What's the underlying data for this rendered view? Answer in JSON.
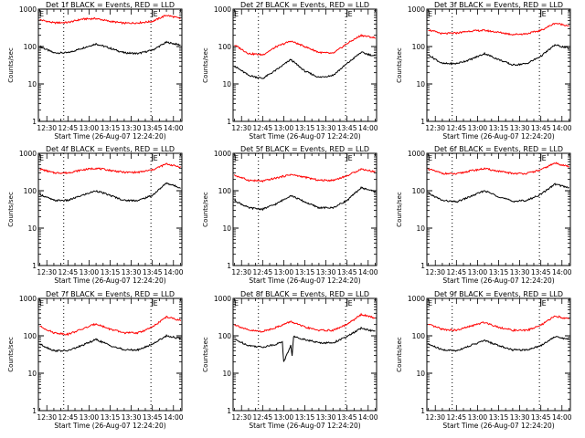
{
  "figure": {
    "layout": "3x3 grid",
    "colors": {
      "events": "#000000",
      "lld": "#ff0000",
      "frame": "#000000",
      "marker": "#000000"
    }
  },
  "chart_data": [
    {
      "type": "line",
      "title": "Det 1f BLACK = Events, RED = LLD",
      "xlabel": "Start Time (26-Aug-07 12:24:20)",
      "ylabel": "Counts/sec",
      "x_ticks": [
        "12:30",
        "12:45",
        "13:00",
        "13:15",
        "13:30",
        "13:45",
        "14:00"
      ],
      "y_ticks": [
        "1",
        "10",
        "100",
        "1000"
      ],
      "yscale": "log",
      "ylim": [
        1,
        1000
      ],
      "xlim": [
        "12:24",
        "14:06"
      ],
      "markers": [
        {
          "label": "E",
          "x": "12:24"
        },
        {
          "label": "E",
          "x": "13:45"
        }
      ],
      "dotted_lines_at": [
        "12:42",
        "13:44"
      ],
      "series": [
        {
          "name": "Events",
          "color": "#000000",
          "x": [
            "12:25",
            "12:35",
            "12:45",
            "12:55",
            "13:05",
            "13:15",
            "13:25",
            "13:35",
            "13:45",
            "13:55",
            "14:05"
          ],
          "y": [
            100,
            68,
            68,
            90,
            118,
            90,
            68,
            65,
            80,
            130,
            110
          ]
        },
        {
          "name": "LLD",
          "color": "#ff0000",
          "x": [
            "12:25",
            "12:35",
            "12:45",
            "12:55",
            "13:05",
            "13:15",
            "13:25",
            "13:35",
            "13:45",
            "13:55",
            "14:05"
          ],
          "y": [
            520,
            430,
            440,
            540,
            560,
            470,
            420,
            430,
            470,
            690,
            560
          ]
        }
      ]
    },
    {
      "type": "line",
      "title": "Det 2f BLACK = Events, RED = LLD",
      "xlabel": "Start Time (26-Aug-07 12:24:20)",
      "ylabel": "Counts/sec",
      "x_ticks": [
        "12:30",
        "12:45",
        "13:00",
        "13:15",
        "13:30",
        "13:45",
        "14:00"
      ],
      "y_ticks": [
        "1",
        "10",
        "100",
        "1000"
      ],
      "yscale": "log",
      "ylim": [
        1,
        1000
      ],
      "xlim": [
        "12:24",
        "14:06"
      ],
      "markers": [
        {
          "label": "E",
          "x": "12:24"
        },
        {
          "label": "E",
          "x": "13:45"
        }
      ],
      "dotted_lines_at": [
        "12:42",
        "13:44"
      ],
      "series": [
        {
          "name": "Events",
          "color": "#000000",
          "x": [
            "12:25",
            "12:35",
            "12:45",
            "12:55",
            "13:05",
            "13:15",
            "13:25",
            "13:35",
            "13:45",
            "13:55",
            "14:05"
          ],
          "y": [
            30,
            17,
            14,
            24,
            45,
            22,
            15,
            17,
            35,
            70,
            55
          ]
        },
        {
          "name": "LLD",
          "color": "#ff0000",
          "x": [
            "12:25",
            "12:35",
            "12:45",
            "12:55",
            "13:05",
            "13:15",
            "13:25",
            "13:35",
            "13:45",
            "13:55",
            "14:05"
          ],
          "y": [
            110,
            65,
            60,
            100,
            140,
            100,
            70,
            65,
            120,
            200,
            170
          ]
        }
      ]
    },
    {
      "type": "line",
      "title": "Det 3f BLACK = Events, RED = LLD",
      "xlabel": "Start Time (26-Aug-07 12:24:20)",
      "ylabel": "Counts/sec",
      "x_ticks": [
        "12:30",
        "12:45",
        "13:00",
        "13:15",
        "13:30",
        "13:45",
        "14:00"
      ],
      "y_ticks": [
        "1",
        "10",
        "100",
        "1000"
      ],
      "yscale": "log",
      "ylim": [
        1,
        1000
      ],
      "xlim": [
        "12:24",
        "14:06"
      ],
      "markers": [
        {
          "label": "E",
          "x": "12:24"
        },
        {
          "label": "E",
          "x": "13:45"
        }
      ],
      "dotted_lines_at": [
        "12:42",
        "13:44"
      ],
      "series": [
        {
          "name": "Events",
          "color": "#000000",
          "x": [
            "12:25",
            "12:35",
            "12:45",
            "12:55",
            "13:05",
            "13:15",
            "13:25",
            "13:35",
            "13:45",
            "13:55",
            "14:05"
          ],
          "y": [
            60,
            35,
            35,
            45,
            65,
            45,
            32,
            35,
            55,
            110,
            90
          ]
        },
        {
          "name": "LLD",
          "color": "#ff0000",
          "x": [
            "12:25",
            "12:35",
            "12:45",
            "12:55",
            "13:05",
            "13:15",
            "13:25",
            "13:35",
            "13:45",
            "13:55",
            "14:05"
          ],
          "y": [
            280,
            220,
            230,
            260,
            270,
            240,
            210,
            220,
            270,
            420,
            360
          ]
        }
      ]
    },
    {
      "type": "line",
      "title": "Det 4f BLACK = Events, RED = LLD",
      "xlabel": "Start Time (26-Aug-07 12:24:20)",
      "ylabel": "Counts/sec",
      "x_ticks": [
        "12:30",
        "12:45",
        "13:00",
        "13:15",
        "13:30",
        "13:45",
        "14:00"
      ],
      "y_ticks": [
        "1",
        "10",
        "100",
        "1000"
      ],
      "yscale": "log",
      "ylim": [
        1,
        1000
      ],
      "xlim": [
        "12:24",
        "14:06"
      ],
      "markers": [
        {
          "label": "E",
          "x": "12:24"
        },
        {
          "label": "E",
          "x": "13:45"
        }
      ],
      "dotted_lines_at": [
        "12:42",
        "13:44"
      ],
      "series": [
        {
          "name": "Events",
          "color": "#000000",
          "x": [
            "12:25",
            "12:35",
            "12:45",
            "12:55",
            "13:05",
            "13:15",
            "13:25",
            "13:35",
            "13:45",
            "13:55",
            "14:05"
          ],
          "y": [
            80,
            55,
            55,
            75,
            100,
            75,
            55,
            55,
            75,
            160,
            120
          ]
        },
        {
          "name": "LLD",
          "color": "#ff0000",
          "x": [
            "12:25",
            "12:35",
            "12:45",
            "12:55",
            "13:05",
            "13:15",
            "13:25",
            "13:35",
            "13:45",
            "13:55",
            "14:05"
          ],
          "y": [
            380,
            300,
            300,
            360,
            400,
            350,
            310,
            310,
            360,
            520,
            430
          ]
        }
      ]
    },
    {
      "type": "line",
      "title": "Det 5f BLACK = Events, RED = LLD",
      "xlabel": "Start Time (26-Aug-07 12:24:20)",
      "ylabel": "Counts/sec",
      "x_ticks": [
        "12:30",
        "12:45",
        "13:00",
        "13:15",
        "13:30",
        "13:45",
        "14:00"
      ],
      "y_ticks": [
        "1",
        "10",
        "100",
        "1000"
      ],
      "yscale": "log",
      "ylim": [
        1,
        1000
      ],
      "xlim": [
        "12:24",
        "14:06"
      ],
      "markers": [
        {
          "label": "E",
          "x": "12:24"
        },
        {
          "label": "E",
          "x": "13:45"
        }
      ],
      "dotted_lines_at": [
        "12:42",
        "13:44"
      ],
      "series": [
        {
          "name": "Events",
          "color": "#000000",
          "x": [
            "12:25",
            "12:35",
            "12:45",
            "12:55",
            "13:05",
            "13:15",
            "13:25",
            "13:35",
            "13:45",
            "13:55",
            "14:05"
          ],
          "y": [
            55,
            35,
            32,
            45,
            75,
            50,
            35,
            35,
            55,
            120,
            95
          ]
        },
        {
          "name": "LLD",
          "color": "#ff0000",
          "x": [
            "12:25",
            "12:35",
            "12:45",
            "12:55",
            "13:05",
            "13:15",
            "13:25",
            "13:35",
            "13:45",
            "13:55",
            "14:05"
          ],
          "y": [
            260,
            190,
            180,
            220,
            270,
            230,
            190,
            190,
            250,
            380,
            320
          ]
        }
      ]
    },
    {
      "type": "line",
      "title": "Det 6f BLACK = Events, RED = LLD",
      "xlabel": "Start Time (26-Aug-07 12:24:20)",
      "ylabel": "Counts/sec",
      "x_ticks": [
        "12:30",
        "12:45",
        "13:00",
        "13:15",
        "13:30",
        "13:45",
        "14:00"
      ],
      "y_ticks": [
        "1",
        "10",
        "100",
        "1000"
      ],
      "yscale": "log",
      "ylim": [
        1,
        1000
      ],
      "xlim": [
        "12:24",
        "14:06"
      ],
      "markers": [
        {
          "label": "E",
          "x": "12:24"
        },
        {
          "label": "E",
          "x": "13:45"
        }
      ],
      "dotted_lines_at": [
        "12:42",
        "13:44"
      ],
      "series": [
        {
          "name": "Events",
          "color": "#000000",
          "x": [
            "12:25",
            "12:35",
            "12:45",
            "12:55",
            "13:05",
            "13:15",
            "13:25",
            "13:35",
            "13:45",
            "13:55",
            "14:05"
          ],
          "y": [
            85,
            55,
            50,
            70,
            100,
            70,
            52,
            55,
            80,
            150,
            120
          ]
        },
        {
          "name": "LLD",
          "color": "#ff0000",
          "x": [
            "12:25",
            "12:35",
            "12:45",
            "12:55",
            "13:05",
            "13:15",
            "13:25",
            "13:35",
            "13:45",
            "13:55",
            "14:05"
          ],
          "y": [
            380,
            290,
            280,
            340,
            390,
            330,
            290,
            290,
            360,
            550,
            440
          ]
        }
      ]
    },
    {
      "type": "line",
      "title": "Det 7f BLACK = Events, RED = LLD",
      "xlabel": "Start Time (26-Aug-07 12:24:20)",
      "ylabel": "Counts/sec",
      "x_ticks": [
        "12:30",
        "12:45",
        "13:00",
        "13:15",
        "13:30",
        "13:45",
        "14:00"
      ],
      "y_ticks": [
        "1",
        "10",
        "100",
        "1000"
      ],
      "yscale": "log",
      "ylim": [
        1,
        1000
      ],
      "xlim": [
        "12:24",
        "14:06"
      ],
      "markers": [
        {
          "label": "E",
          "x": "12:24"
        },
        {
          "label": "E",
          "x": "13:45"
        }
      ],
      "dotted_lines_at": [
        "12:42",
        "13:44"
      ],
      "series": [
        {
          "name": "Events",
          "color": "#000000",
          "x": [
            "12:25",
            "12:35",
            "12:45",
            "12:55",
            "13:05",
            "13:15",
            "13:25",
            "13:35",
            "13:45",
            "13:55",
            "14:05"
          ],
          "y": [
            60,
            40,
            40,
            55,
            80,
            55,
            42,
            42,
            60,
            100,
            85
          ]
        },
        {
          "name": "LLD",
          "color": "#ff0000",
          "x": [
            "12:25",
            "12:35",
            "12:45",
            "12:55",
            "13:05",
            "13:15",
            "13:25",
            "13:35",
            "13:45",
            "13:55",
            "14:05"
          ],
          "y": [
            180,
            120,
            110,
            150,
            210,
            150,
            120,
            120,
            170,
            320,
            260
          ]
        }
      ]
    },
    {
      "type": "line",
      "title": "Det 8f BLACK = Events, RED = LLD",
      "xlabel": "Start Time (26-Aug-07 12:24:20)",
      "ylabel": "Counts/sec",
      "x_ticks": [
        "12:30",
        "12:45",
        "13:00",
        "13:15",
        "13:30",
        "13:45",
        "14:00"
      ],
      "y_ticks": [
        "1",
        "10",
        "100",
        "1000"
      ],
      "yscale": "log",
      "ylim": [
        1,
        1000
      ],
      "xlim": [
        "12:24",
        "14:06"
      ],
      "markers": [
        {
          "label": "E",
          "x": "12:24"
        },
        {
          "label": "E",
          "x": "13:45"
        }
      ],
      "dotted_lines_at": [
        "12:42",
        "13:44"
      ],
      "series": [
        {
          "name": "Events",
          "color": "#000000",
          "x": [
            "12:25",
            "12:35",
            "12:45",
            "12:55",
            "12:59",
            "13:00",
            "13:05",
            "13:06",
            "13:07",
            "13:15",
            "13:25",
            "13:35",
            "13:45",
            "13:55",
            "14:05"
          ],
          "y": [
            80,
            55,
            50,
            60,
            70,
            20,
            55,
            30,
            95,
            80,
            65,
            65,
            95,
            160,
            130
          ]
        },
        {
          "name": "LLD",
          "color": "#ff0000",
          "x": [
            "12:25",
            "12:35",
            "12:45",
            "12:55",
            "13:05",
            "13:15",
            "13:25",
            "13:35",
            "13:45",
            "13:55",
            "14:05"
          ],
          "y": [
            200,
            140,
            130,
            170,
            240,
            170,
            140,
            140,
            200,
            370,
            300
          ]
        }
      ]
    },
    {
      "type": "line",
      "title": "Det 9f BLACK = Events, RED = LLD",
      "xlabel": "Start Time (26-Aug-07 12:24:20)",
      "ylabel": "Counts/sec",
      "x_ticks": [
        "12:30",
        "12:45",
        "13:00",
        "13:15",
        "13:30",
        "13:45",
        "14:00"
      ],
      "y_ticks": [
        "1",
        "10",
        "100",
        "1000"
      ],
      "yscale": "log",
      "ylim": [
        1,
        1000
      ],
      "xlim": [
        "12:24",
        "14:06"
      ],
      "markers": [
        {
          "label": "E",
          "x": "12:24"
        },
        {
          "label": "E",
          "x": "13:45"
        }
      ],
      "dotted_lines_at": [
        "12:42",
        "13:44"
      ],
      "series": [
        {
          "name": "Events",
          "color": "#000000",
          "x": [
            "12:25",
            "12:35",
            "12:45",
            "12:55",
            "13:05",
            "13:15",
            "13:25",
            "13:35",
            "13:45",
            "13:55",
            "14:05"
          ],
          "y": [
            60,
            42,
            40,
            55,
            75,
            55,
            42,
            42,
            55,
            95,
            80
          ]
        },
        {
          "name": "LLD",
          "color": "#ff0000",
          "x": [
            "12:25",
            "12:35",
            "12:45",
            "12:55",
            "13:05",
            "13:15",
            "13:25",
            "13:35",
            "13:45",
            "13:55",
            "14:05"
          ],
          "y": [
            200,
            150,
            140,
            180,
            230,
            170,
            140,
            140,
            190,
            340,
            280
          ]
        }
      ]
    }
  ]
}
